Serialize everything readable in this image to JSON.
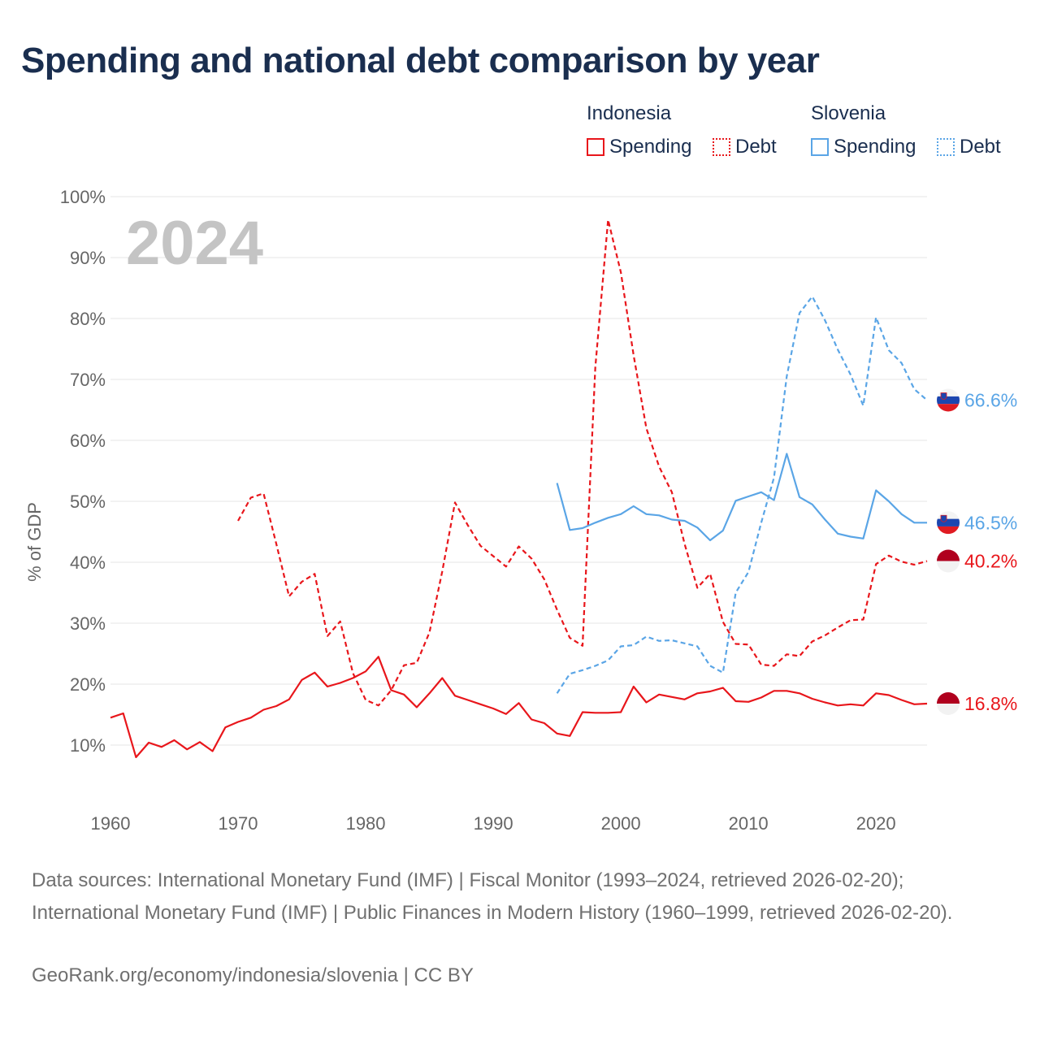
{
  "title": "Spending and national debt comparison by year",
  "legend": {
    "group1": "Indonesia",
    "group2": "Slovenia",
    "spending": "Spending",
    "debt": "Debt"
  },
  "colors": {
    "indonesia": "#e8161b",
    "slovenia": "#5aa5e6",
    "flag_red": "#b0001e"
  },
  "chart_data": {
    "type": "line",
    "title": "Spending and national debt comparison by year",
    "ylabel": "% of GDP",
    "xlabel": "",
    "year_label": "2024",
    "xlim": [
      1960,
      2024
    ],
    "ylim": [
      0,
      100
    ],
    "x_ticks": [
      1960,
      1970,
      1980,
      1990,
      2000,
      2010,
      2020
    ],
    "y_ticks": [
      {
        "value": 10,
        "label": "10%"
      },
      {
        "value": 20,
        "label": "20%"
      },
      {
        "value": 30,
        "label": "30%"
      },
      {
        "value": 40,
        "label": "40%"
      },
      {
        "value": 50,
        "label": "50%"
      },
      {
        "value": 60,
        "label": "60%"
      },
      {
        "value": 70,
        "label": "70%"
      },
      {
        "value": 80,
        "label": "80%"
      },
      {
        "value": 90,
        "label": "90%"
      },
      {
        "value": 100,
        "label": "100%"
      }
    ],
    "series": [
      {
        "name": "Indonesia Spending",
        "country": "indonesia",
        "style": "solid",
        "end_label": "16.8%",
        "x": [
          1960,
          1961,
          1962,
          1963,
          1964,
          1965,
          1966,
          1967,
          1968,
          1969,
          1970,
          1971,
          1972,
          1973,
          1974,
          1975,
          1976,
          1977,
          1978,
          1979,
          1980,
          1981,
          1982,
          1983,
          1984,
          1985,
          1986,
          1987,
          1988,
          1989,
          1990,
          1991,
          1992,
          1993,
          1994,
          1995,
          1996,
          1997,
          1998,
          1999,
          2000,
          2001,
          2002,
          2003,
          2004,
          2005,
          2006,
          2007,
          2008,
          2009,
          2010,
          2011,
          2012,
          2013,
          2014,
          2015,
          2016,
          2017,
          2018,
          2019,
          2020,
          2021,
          2022,
          2023,
          2024
        ],
        "values": [
          14.5,
          15.2,
          8.0,
          10.4,
          9.7,
          10.8,
          9.3,
          10.5,
          9.0,
          12.9,
          13.8,
          14.5,
          15.8,
          16.4,
          17.5,
          20.7,
          21.9,
          19.6,
          20.2,
          21.0,
          22.1,
          24.5,
          19.0,
          18.3,
          16.2,
          18.5,
          21.0,
          18.1,
          17.4,
          16.7,
          16.0,
          15.1,
          16.9,
          14.2,
          13.6,
          11.9,
          11.5,
          15.4,
          15.3,
          15.3,
          15.4,
          19.6,
          17.0,
          18.3,
          17.9,
          17.5,
          18.5,
          18.8,
          19.4,
          17.2,
          17.1,
          17.8,
          18.9,
          18.9,
          18.5,
          17.6,
          17.0,
          16.5,
          16.7,
          16.5,
          18.5,
          18.2,
          17.4,
          16.7,
          16.8
        ]
      },
      {
        "name": "Indonesia Debt",
        "country": "indonesia",
        "style": "dashed",
        "end_label": "40.2%",
        "x": [
          1970,
          1971,
          1972,
          1973,
          1974,
          1975,
          1976,
          1977,
          1978,
          1979,
          1980,
          1981,
          1982,
          1983,
          1984,
          1985,
          1986,
          1987,
          1988,
          1989,
          1990,
          1991,
          1992,
          1993,
          1994,
          1995,
          1996,
          1997,
          1998,
          1999,
          2000,
          2001,
          2002,
          2003,
          2004,
          2005,
          2006,
          2007,
          2008,
          2009,
          2010,
          2011,
          2012,
          2013,
          2014,
          2015,
          2016,
          2017,
          2018,
          2019,
          2020,
          2021,
          2022,
          2023,
          2024
        ],
        "values": [
          46.8,
          50.6,
          51.3,
          43.0,
          34.4,
          36.8,
          38.1,
          27.9,
          30.3,
          21.8,
          17.4,
          16.5,
          19.0,
          23.1,
          23.5,
          28.5,
          38.5,
          49.8,
          46.1,
          42.7,
          41.0,
          39.3,
          42.6,
          40.6,
          37.2,
          32.2,
          27.6,
          26.3,
          72.0,
          96.2,
          87.6,
          74.0,
          62.0,
          55.7,
          51.5,
          43.0,
          35.8,
          38.1,
          30.2,
          26.6,
          26.5,
          23.2,
          23.0,
          24.9,
          24.6,
          27.0,
          28.0,
          29.3,
          30.5,
          30.6,
          39.7,
          41.1,
          40.1,
          39.6,
          40.2
        ]
      },
      {
        "name": "Slovenia Spending",
        "country": "slovenia",
        "style": "solid",
        "end_label": "46.5%",
        "x": [
          1995,
          1996,
          1997,
          1998,
          1999,
          2000,
          2001,
          2002,
          2003,
          2004,
          2005,
          2006,
          2007,
          2008,
          2009,
          2010,
          2011,
          2012,
          2013,
          2014,
          2015,
          2016,
          2017,
          2018,
          2019,
          2020,
          2021,
          2022,
          2023,
          2024
        ],
        "values": [
          53.0,
          45.3,
          45.6,
          46.5,
          47.3,
          47.9,
          49.2,
          47.9,
          47.7,
          47.0,
          46.8,
          45.7,
          43.6,
          45.2,
          50.1,
          50.8,
          51.5,
          50.2,
          57.8,
          50.7,
          49.5,
          47.0,
          44.7,
          44.2,
          43.9,
          51.8,
          50.0,
          47.9,
          46.5,
          46.5
        ]
      },
      {
        "name": "Slovenia Debt",
        "country": "slovenia",
        "style": "dashed",
        "end_label": "66.6%",
        "x": [
          1995,
          1996,
          1997,
          1998,
          1999,
          2000,
          2001,
          2002,
          2003,
          2004,
          2005,
          2006,
          2007,
          2008,
          2009,
          2010,
          2011,
          2012,
          2013,
          2014,
          2015,
          2016,
          2017,
          2018,
          2019,
          2020,
          2021,
          2022,
          2023,
          2024
        ],
        "values": [
          18.5,
          21.7,
          22.3,
          23.0,
          23.9,
          26.2,
          26.4,
          27.8,
          27.1,
          27.2,
          26.7,
          26.2,
          23.0,
          21.9,
          35.0,
          38.4,
          46.5,
          53.9,
          70.5,
          80.9,
          83.6,
          79.7,
          74.9,
          70.8,
          65.7,
          80.2,
          74.8,
          72.7,
          68.4,
          66.6
        ]
      }
    ]
  },
  "footer": {
    "sources": "Data sources: International Monetary Fund (IMF) | Fiscal Monitor (1993–2024, retrieved 2026-02-20); International Monetary Fund (IMF) | Public Finances in Modern History (1960–1999, retrieved 2026-02-20).",
    "credit": "GeoRank.org/economy/indonesia/slovenia | CC BY"
  }
}
